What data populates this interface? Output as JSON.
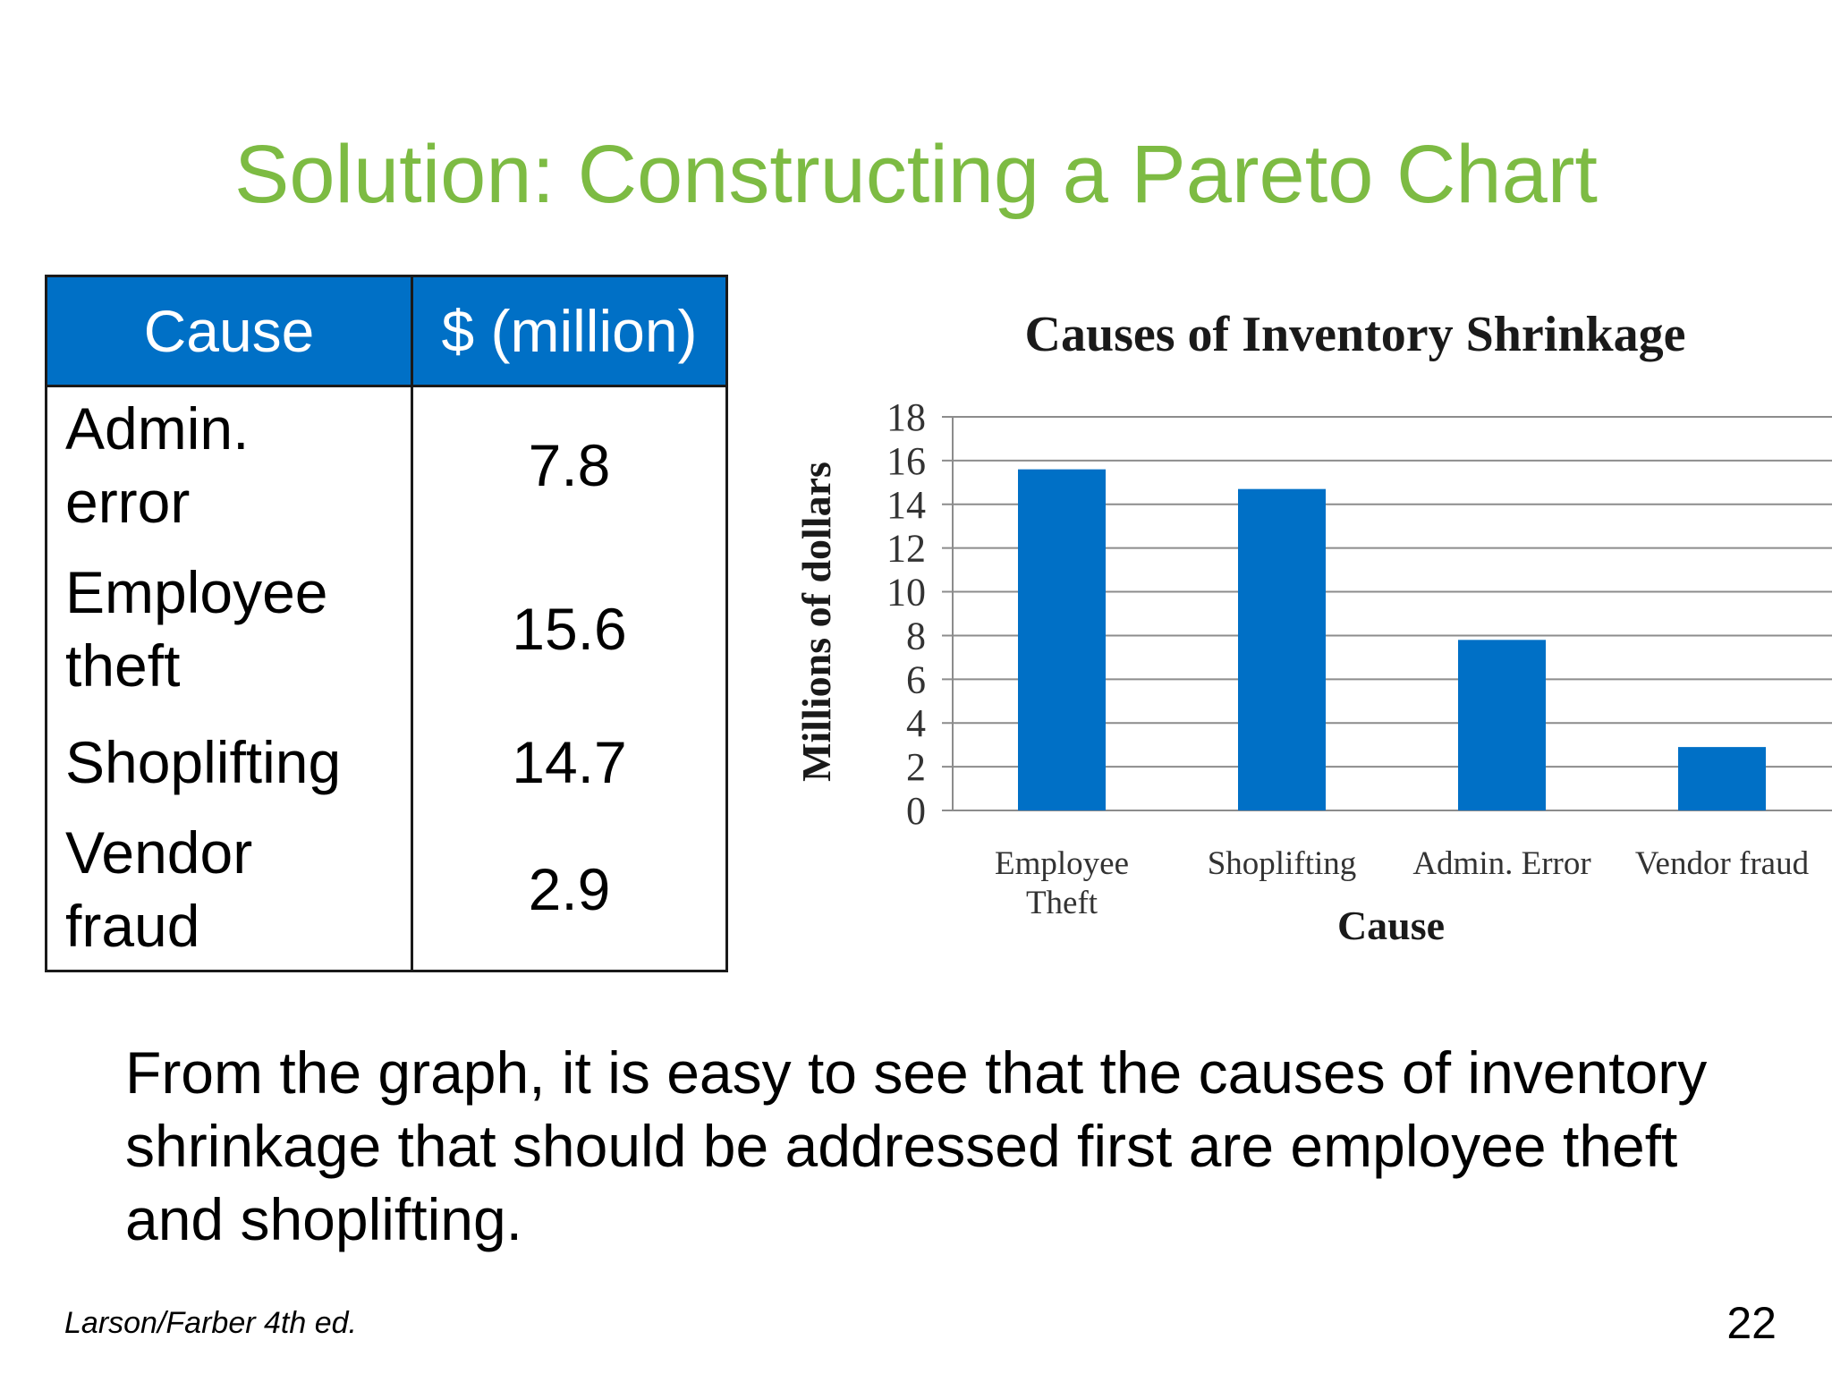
{
  "slide": {
    "title": "Solution: Constructing a Pareto Chart",
    "body_text": "From the graph, it is easy to see that the causes of inventory shrinkage that should be addressed first are employee theft and shoplifting.",
    "footer": "Larson/Farber 4th ed.",
    "page_number": "22"
  },
  "table": {
    "headers": [
      "Cause",
      "$ (million)"
    ],
    "rows": [
      {
        "cause": [
          "Admin.",
          "error"
        ],
        "value": "7.8"
      },
      {
        "cause": [
          "Employee",
          "theft"
        ],
        "value": "15.6"
      },
      {
        "cause": [
          "Shoplifting"
        ],
        "value": "14.7"
      },
      {
        "cause": [
          "Vendor",
          "fraud"
        ],
        "value": "2.9"
      }
    ]
  },
  "colors": {
    "title": "#7dbb43",
    "header_bg": "#0070c6",
    "bar": "#0070c6",
    "gridline": "#8c8c8c"
  },
  "chart_data": {
    "type": "bar",
    "title": "Causes of Inventory Shrinkage",
    "xlabel": "Cause",
    "ylabel": "Millions of dollars",
    "categories": [
      [
        "Employee",
        "Theft"
      ],
      [
        "Shoplifting"
      ],
      [
        "Admin. Error"
      ],
      [
        "Vendor fraud"
      ]
    ],
    "values": [
      15.6,
      14.7,
      7.8,
      2.9
    ],
    "ylim": [
      0,
      18
    ],
    "yticks": [
      0,
      2,
      4,
      6,
      8,
      10,
      12,
      14,
      16,
      18
    ],
    "grid": true,
    "legend": "none"
  }
}
